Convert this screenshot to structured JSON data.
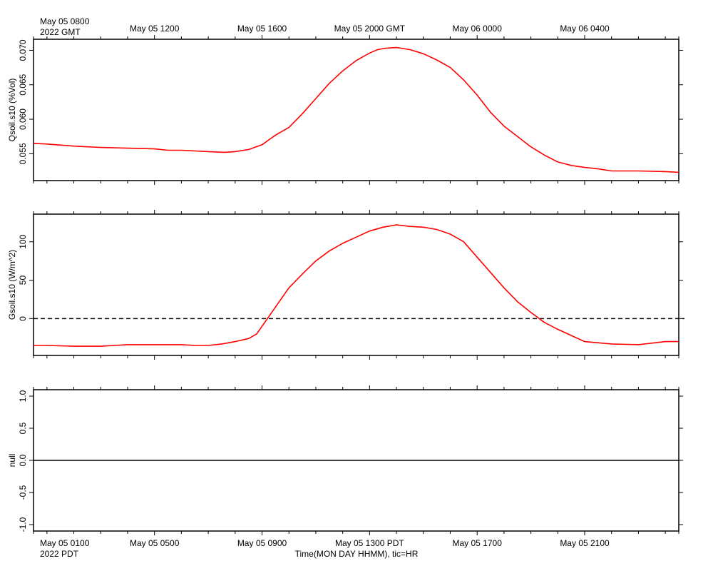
{
  "top_axis": {
    "start_line1": "May 05 0800",
    "start_line2": "2022 GMT",
    "labels": [
      "May 05 1200",
      "May 05 1600",
      "May 05 2000 GMT",
      "May 06 0000",
      "May 06 0400"
    ]
  },
  "bottom_axis": {
    "start_line1": "May 05 0100",
    "start_line2": "2022 PDT",
    "labels": [
      "May 05 0500",
      "May 05 0900",
      "May 05 1300 PDT",
      "May 05 1700",
      "May 05 2100"
    ],
    "title": "Time(MON DAY HHMM), tic=HR"
  },
  "colors": {
    "series": "#ff0000",
    "axis": "#000000"
  },
  "chart_data": [
    {
      "type": "line",
      "ylabel": "Qsoil.s10 (%Vol)",
      "xunit": "hours after May 05 0000 PDT",
      "xlim": [
        0.5,
        24.5
      ],
      "ylim": [
        0.0511,
        0.0716
      ],
      "yticks": [
        0.055,
        0.06,
        0.065,
        0.07
      ],
      "ytick_labels": [
        "0.055",
        "0.060",
        "0.065",
        "0.070"
      ],
      "series": [
        {
          "x": [
            0.5,
            1.0,
            2.0,
            3.0,
            4.0,
            5.0,
            5.5,
            6.0,
            7.0,
            7.6,
            8.0,
            8.5,
            9.0,
            9.5,
            10.0,
            10.5,
            11.0,
            11.5,
            12.0,
            12.5,
            13.0,
            13.3,
            13.6,
            14.0,
            14.5,
            15.0,
            15.5,
            16.0,
            16.5,
            17.0,
            17.5,
            18.0,
            18.5,
            19.0,
            19.5,
            20.0,
            20.5,
            21.0,
            21.5,
            22.0,
            23.0,
            24.0,
            24.5
          ],
          "y": [
            0.0565,
            0.0564,
            0.0561,
            0.0559,
            0.0558,
            0.0557,
            0.0555,
            0.0555,
            0.0553,
            0.0552,
            0.0553,
            0.0556,
            0.0563,
            0.0577,
            0.0588,
            0.0608,
            0.063,
            0.0652,
            0.067,
            0.0685,
            0.0696,
            0.0701,
            0.0703,
            0.0704,
            0.0701,
            0.0695,
            0.0686,
            0.0675,
            0.0657,
            0.0635,
            0.061,
            0.059,
            0.0575,
            0.056,
            0.0548,
            0.0538,
            0.0533,
            0.053,
            0.0528,
            0.0525,
            0.0525,
            0.0524,
            0.0523
          ]
        }
      ]
    },
    {
      "type": "line",
      "ylabel": "Gsoil.s10 (W/m^2)",
      "xunit": "hours after May 05 0000 PDT",
      "xlim": [
        0.5,
        24.5
      ],
      "ylim": [
        -48,
        136
      ],
      "yticks": [
        0,
        50,
        100
      ],
      "ytick_labels": [
        "0",
        "50",
        "100"
      ],
      "reference_line": {
        "y": 0,
        "style": "dashed"
      },
      "series": [
        {
          "x": [
            0.5,
            1.0,
            2.0,
            3.0,
            3.5,
            4.0,
            5.0,
            6.0,
            6.5,
            7.0,
            7.5,
            8.0,
            8.5,
            8.8,
            9.0,
            9.3,
            9.6,
            10.0,
            10.5,
            11.0,
            11.5,
            12.0,
            12.5,
            13.0,
            13.5,
            14.0,
            14.5,
            15.0,
            15.5,
            16.0,
            16.5,
            17.0,
            17.5,
            18.0,
            18.5,
            19.0,
            19.5,
            20.0,
            21.0,
            22.0,
            23.0,
            24.0,
            24.5
          ],
          "y": [
            -35,
            -35,
            -36,
            -36,
            -35,
            -34,
            -34,
            -34,
            -35,
            -35,
            -33,
            -30,
            -26,
            -20,
            -10,
            5,
            20,
            40,
            58,
            75,
            88,
            98,
            106,
            114,
            119,
            122,
            120,
            119,
            116,
            110,
            100,
            80,
            60,
            40,
            22,
            8,
            -5,
            -14,
            -30,
            -33,
            -34,
            -30,
            -30
          ]
        }
      ]
    },
    {
      "type": "line",
      "ylabel": "null",
      "xunit": "hours after May 05 0000 PDT",
      "xlim": [
        0.5,
        24.5
      ],
      "ylim": [
        -1.1,
        1.1
      ],
      "yticks": [
        -1.0,
        -0.5,
        0.0,
        0.5,
        1.0
      ],
      "ytick_labels": [
        "-1.0",
        "-0.5",
        "0.0",
        "0.5",
        "1.0"
      ],
      "reference_line": {
        "y": 0,
        "style": "solid"
      },
      "series": []
    }
  ]
}
